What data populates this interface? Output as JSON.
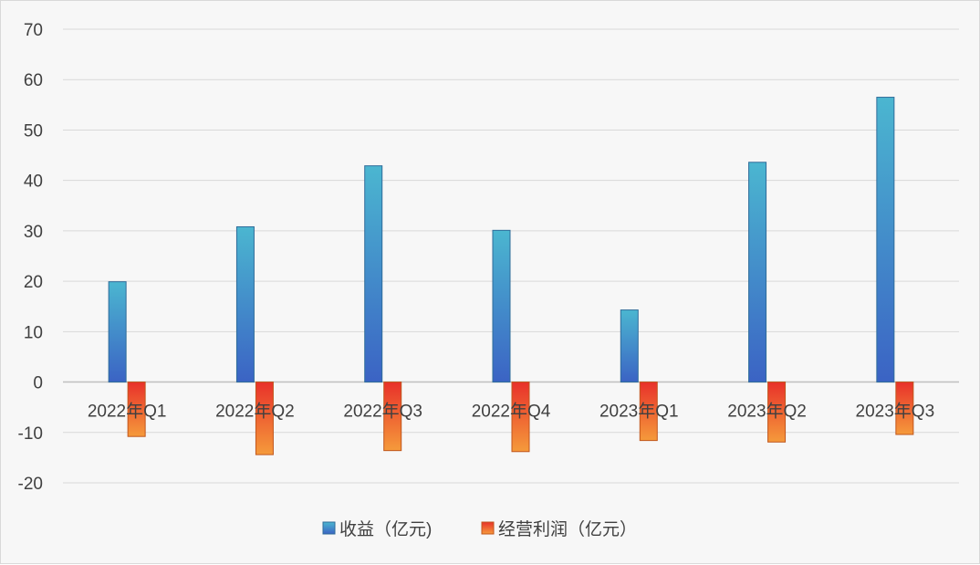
{
  "chart_data": {
    "type": "bar",
    "title": "",
    "xlabel": "",
    "ylabel": "",
    "ylim": [
      -20,
      70
    ],
    "yticks": [
      70,
      60,
      50,
      40,
      30,
      20,
      10,
      0,
      -10,
      -20
    ],
    "grid": true,
    "legend_position": "bottom",
    "categories": [
      "2022年Q1",
      "2022年Q2",
      "2022年Q3",
      "2022年Q4",
      "2023年Q1",
      "2023年Q2",
      "2023年Q3"
    ],
    "series": [
      {
        "name": "收益（亿元)",
        "values": [
          19.9,
          30.8,
          42.9,
          30.1,
          14.3,
          43.6,
          56.5
        ],
        "color_top": "#4bb6d0",
        "color_bottom": "#3b63c4"
      },
      {
        "name": "经营利润（亿元）",
        "values": [
          -10.8,
          -14.4,
          -13.6,
          -13.8,
          -11.6,
          -11.9,
          -10.4
        ],
        "color_top": "#e8312a",
        "color_bottom": "#f59a3b"
      }
    ]
  }
}
